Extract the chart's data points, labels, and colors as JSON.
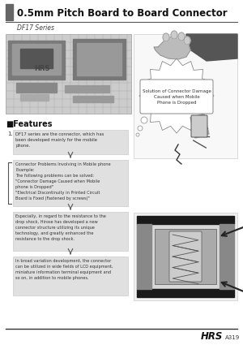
{
  "title": "0.5mm Pitch Board to Board Connector",
  "series_label": "DF17 Series",
  "features_title": "■Features",
  "background_color": "#ffffff",
  "header_bar_color": "#666666",
  "title_fontsize": 8.5,
  "series_fontsize": 5.5,
  "footer_text": "HRS",
  "footer_sub": "A319",
  "text_box1": "DF17 series are the connector, which has\nbeen developed mainly for the mobile\nphone.",
  "text_box_problems": "Connector Problems Involving in Mobile phone\nExample:\nThe following problems can be solved:\n\"Connector Damage Caused when Mobile\nphone is Dropped\"\n\"Electrical Discontinuity in Printed Circuit\nBoard is Fixed (Fastened by screws)\"",
  "text_box_drop": "Especially, in regard to the resistance to the\ndrop shock, Hirose has developed a new\nconnector structure utilizing its unique\ntechnology, and greatly enhanced the\nresistance to the drop shock.",
  "text_box_broad": "In broad variation development, the connector\ncan be utilized in wide fields of LCD equipment,\nminiature information terminal equipment and\nso on, in addition to mobile phones.",
  "callout_text": "Solution of Connector Damage\nCaused when Mobile\nPhone is Dropped",
  "gray_box_color": "#e0e0e0",
  "light_gray": "#f5f5f5",
  "mid_gray": "#bbbbbb",
  "dark_gray": "#888888",
  "very_dark": "#222222",
  "line_color": "#333333"
}
